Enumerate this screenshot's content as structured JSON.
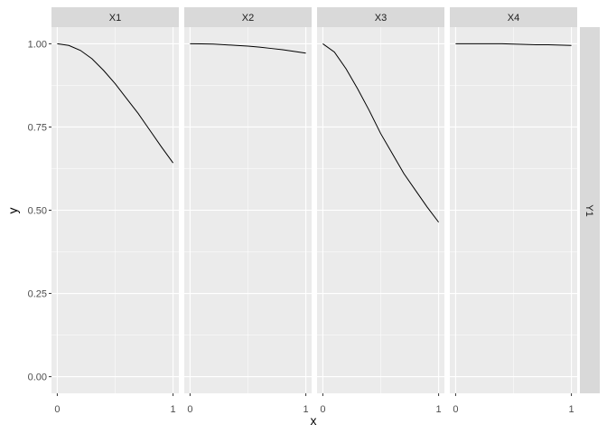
{
  "chart_data": {
    "type": "line",
    "facets": [
      "X1",
      "X2",
      "X3",
      "X4"
    ],
    "row_strip": "Y1",
    "xlabel": "x",
    "ylabel": "y",
    "xlim": [
      0,
      1
    ],
    "ylim": [
      0,
      1
    ],
    "x_ticks": [
      "0",
      "1"
    ],
    "y_ticks": [
      "0.00",
      "0.25",
      "0.50",
      "0.75",
      "1.00"
    ],
    "grid": true,
    "x": [
      0,
      0.1,
      0.2,
      0.3,
      0.4,
      0.5,
      0.6,
      0.7,
      0.8,
      0.9,
      1.0
    ],
    "series": [
      {
        "facet": "X1",
        "values": [
          1.0,
          0.995,
          0.98,
          0.955,
          0.92,
          0.88,
          0.835,
          0.79,
          0.74,
          0.69,
          0.642
        ]
      },
      {
        "facet": "X2",
        "values": [
          1.0,
          0.9997,
          0.999,
          0.997,
          0.995,
          0.993,
          0.99,
          0.986,
          0.982,
          0.977,
          0.972
        ]
      },
      {
        "facet": "X3",
        "values": [
          1.0,
          0.975,
          0.925,
          0.865,
          0.8,
          0.73,
          0.67,
          0.61,
          0.56,
          0.51,
          0.464
        ]
      },
      {
        "facet": "X4",
        "values": [
          1.0,
          1.0,
          1.0,
          1.0,
          1.0,
          0.999,
          0.998,
          0.997,
          0.997,
          0.996,
          0.995
        ]
      }
    ],
    "colors": {
      "panel": "#EBEBEB",
      "strip": "#D9D9D9",
      "grid": "#FFFFFF",
      "line": "#000000",
      "text": "#4D4D4D"
    }
  }
}
